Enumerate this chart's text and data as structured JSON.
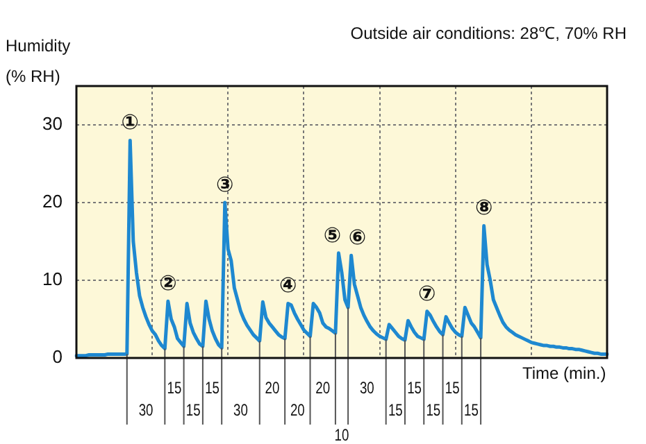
{
  "chart_data": {
    "type": "line",
    "subtitle": "Outside air conditions: 28℃, 70% RH",
    "ylabel": "Humidity (% RH)",
    "xlabel": "Time (min.)",
    "categories": [
      null,
      null,
      null,
      null,
      null,
      null,
      null,
      null,
      null,
      null,
      null,
      null,
      null,
      null,
      null,
      null,
      null,
      null,
      null,
      null,
      null,
      null,
      null,
      null,
      null,
      null,
      null,
      null,
      null,
      null,
      null,
      null,
      null,
      null,
      null,
      null,
      null,
      null,
      null,
      null,
      null,
      null,
      null,
      null,
      null,
      null,
      null,
      null,
      null,
      null,
      null,
      null,
      null,
      null,
      null,
      null,
      null,
      null,
      null,
      null,
      null,
      null,
      null,
      null,
      null,
      null,
      null,
      null,
      null,
      null,
      null,
      null,
      null,
      null,
      null,
      null,
      null,
      null,
      null,
      null,
      null,
      null,
      null,
      null,
      null,
      null,
      null,
      null,
      null,
      null,
      null,
      null,
      null,
      null,
      null,
      null,
      null,
      null,
      null,
      null,
      null,
      null,
      null,
      null,
      null,
      null,
      null,
      null,
      null,
      null,
      null,
      null,
      null,
      null,
      null,
      null,
      null,
      null,
      null,
      null,
      null,
      null,
      null,
      null,
      null,
      null,
      null,
      null,
      null,
      null,
      null,
      null,
      null,
      null,
      null,
      null,
      null,
      null,
      null,
      null,
      null,
      null,
      null,
      null,
      null,
      null,
      null,
      null,
      null,
      null,
      null,
      null,
      null,
      null,
      null,
      null,
      null,
      null,
      null,
      null,
      null,
      null,
      null,
      null,
      null,
      null,
      null,
      null,
      null
    ],
    "ylim": [
      0,
      35
    ],
    "yticks": [
      0,
      10,
      20,
      30
    ],
    "grid": true,
    "legend": false,
    "tick_labels": "y",
    "marker": "none",
    "line_style": "solid",
    "series": [
      {
        "color": "#1e88d0",
        "values": [
          0.3,
          0.3,
          0.3,
          0.3,
          0.4,
          0.4,
          0.4,
          0.4,
          0.4,
          0.4,
          0.5,
          0.5,
          0.5,
          0.5,
          0.5,
          0.5,
          0.5,
          28,
          15,
          11,
          8,
          6.5,
          5.3,
          4.3,
          3.5,
          3,
          2.2,
          1.6,
          1.2,
          7.3,
          5,
          4,
          2.5,
          2,
          1.5,
          7,
          4.5,
          3.3,
          2.5,
          1.8,
          1.5,
          7.3,
          5,
          3.5,
          2.5,
          1.7,
          1.3,
          20,
          14,
          12.5,
          9,
          7.5,
          6,
          5,
          4.2,
          3.6,
          3,
          2.6,
          2.2,
          7.2,
          5.2,
          4.5,
          4,
          3.5,
          3,
          2.7,
          2.5,
          7,
          6.8,
          5.8,
          5,
          4.3,
          3.6,
          3.2,
          2.8,
          7,
          6.5,
          5.8,
          4.5,
          4,
          3.8,
          3.5,
          3.2,
          13.5,
          11,
          7.5,
          6.5,
          13.2,
          9.5,
          8,
          6.5,
          5.5,
          4.7,
          4,
          3.5,
          3.1,
          2.8,
          2.6,
          2.4,
          4.3,
          3.8,
          3.3,
          2.8,
          2.5,
          2.3,
          4.8,
          4,
          3.3,
          2.8,
          2.6,
          2.4,
          6,
          5.5,
          4.7,
          4,
          3.4,
          3,
          5.3,
          4.5,
          3.8,
          3.3,
          3,
          2.8,
          6.5,
          5.5,
          4.5,
          4,
          3.3,
          2.6,
          17,
          12,
          10,
          7.5,
          6.5,
          5.5,
          4.6,
          4,
          3.6,
          3.3,
          3,
          2.8,
          2.6,
          2.4,
          2.2,
          2,
          1.9,
          1.8,
          1.7,
          1.6,
          1.6,
          1.5,
          1.5,
          1.4,
          1.4,
          1.3,
          1.3,
          1.2,
          1.2,
          1.1,
          1.1,
          1,
          0.9,
          0.8,
          0.7,
          0.6,
          0.6,
          0.5,
          0.5,
          0.5
        ],
        "value_labels": [
          null,
          null,
          null,
          null,
          null,
          null,
          null,
          null,
          null,
          null,
          null,
          null,
          null,
          null,
          null,
          null,
          null,
          "①",
          null,
          null,
          null,
          null,
          null,
          null,
          null,
          null,
          null,
          null,
          null,
          "②",
          null,
          null,
          null,
          null,
          null,
          null,
          null,
          null,
          null,
          null,
          null,
          null,
          null,
          null,
          null,
          null,
          null,
          "③",
          null,
          null,
          null,
          null,
          null,
          null,
          null,
          null,
          null,
          null,
          null,
          null,
          null,
          null,
          null,
          null,
          null,
          null,
          null,
          "④",
          null,
          null,
          null,
          null,
          null,
          null,
          null,
          null,
          null,
          null,
          null,
          null,
          null,
          null,
          null,
          "⑤",
          null,
          null,
          null,
          "⑥",
          null,
          null,
          null,
          null,
          null,
          null,
          null,
          null,
          null,
          null,
          null,
          null,
          null,
          null,
          null,
          null,
          null,
          null,
          null,
          null,
          null,
          null,
          null,
          "⑦",
          null,
          null,
          null,
          null,
          null,
          null,
          null,
          null,
          null,
          null,
          null,
          null,
          null,
          null,
          null,
          null,
          null,
          "⑧",
          null,
          null,
          null,
          null,
          null,
          null,
          null,
          null,
          null,
          null,
          null,
          null,
          null,
          null,
          null,
          null,
          null,
          null,
          null,
          null,
          null,
          null,
          null,
          null,
          null,
          null,
          null,
          null,
          null,
          null,
          null,
          null,
          null,
          null,
          null,
          null,
          null,
          null,
          null
        ]
      }
    ],
    "annotations": [
      "30",
      "15",
      "15",
      "15",
      "30",
      "20",
      "20",
      "20",
      "10",
      "30",
      "15",
      "15",
      "15",
      "15",
      "15"
    ]
  }
}
